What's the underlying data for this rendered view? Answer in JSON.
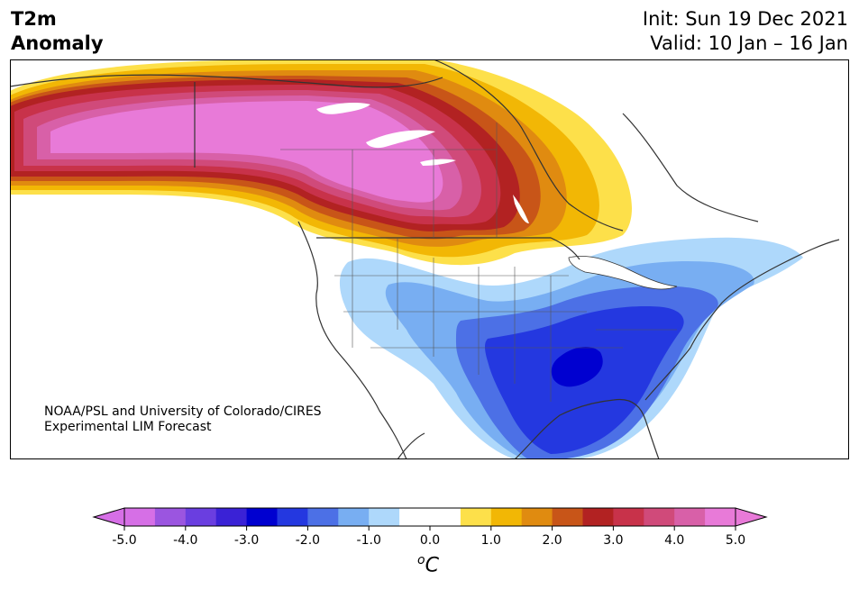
{
  "header": {
    "title_line1": "T2m",
    "title_line2": "Anomaly",
    "init": "Init: Sun 19 Dec 2021",
    "valid": "Valid: 10 Jan – 16 Jan"
  },
  "credit": {
    "line1": "NOAA/PSL and University of Colorado/CIRES",
    "line2": "Experimental LIM Forecast"
  },
  "colorbar": {
    "ticks": [
      "-5.0",
      "-4.0",
      "-3.0",
      "-2.0",
      "-1.0",
      "0.0",
      "1.0",
      "2.0",
      "3.0",
      "4.0",
      "5.0"
    ],
    "unit_base": "C",
    "unit_sup": "o",
    "colors": [
      "#d66fe6",
      "#9b55e0",
      "#6a3ee0",
      "#3a22d6",
      "#0000d0",
      "#2438e0",
      "#4c70e6",
      "#78aef2",
      "#aed8fb",
      "#ffffff",
      "#ffffff",
      "#fde04a",
      "#f2b705",
      "#e08b10",
      "#c85518",
      "#b22222",
      "#c8324a",
      "#d04a7a",
      "#d860a8",
      "#e87ad8"
    ],
    "under_color": "#d66fe6",
    "over_color": "#e87ad8"
  },
  "map_colors": {
    "land": "#ffffff",
    "border": "#333333"
  }
}
